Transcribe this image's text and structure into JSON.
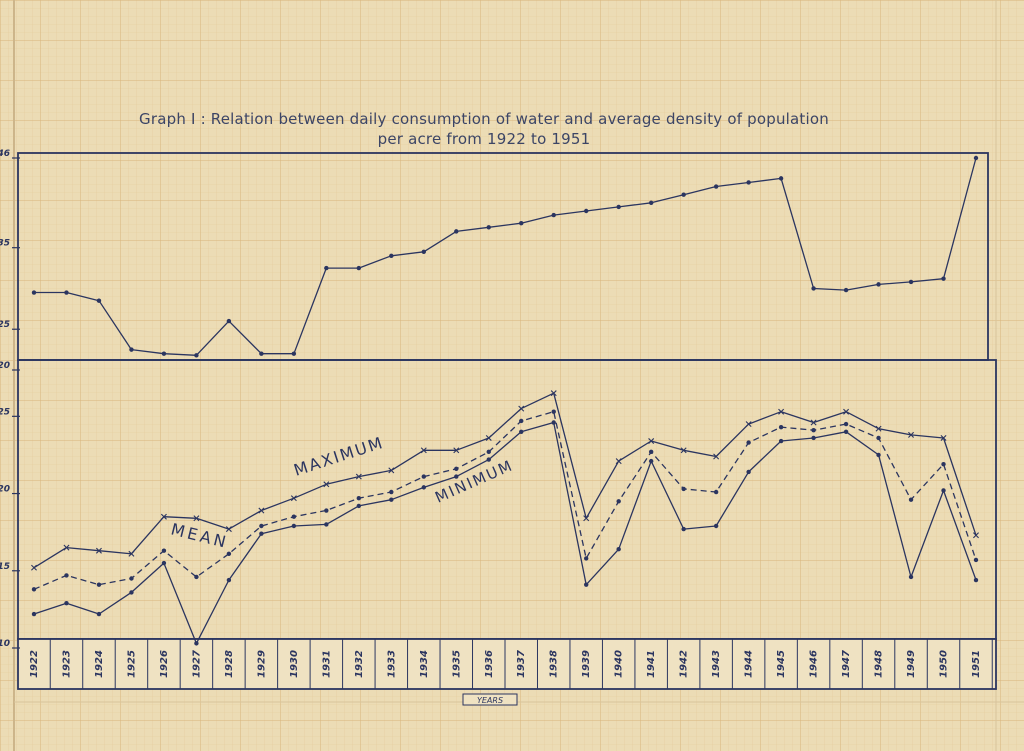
{
  "title_line1": "Graph I :  Relation between daily consumption of water and  average density of population",
  "title_line2": "per acre from 1922 to 1951",
  "colors": {
    "paper": "#ecdcb5",
    "grid_minor": "#e0c391",
    "grid_major": "#d4ac6c",
    "ink": "#2b3560"
  },
  "chart_data": [
    {
      "type": "line",
      "panel": "upper",
      "x": [
        "1922",
        "1923",
        "1924",
        "1925",
        "1926",
        "1927",
        "1928",
        "1929",
        "1930",
        "1931",
        "1932",
        "1933",
        "1934",
        "1935",
        "1936",
        "1937",
        "1938",
        "1939",
        "1940",
        "1941",
        "1942",
        "1943",
        "1944",
        "1945",
        "1946",
        "1947",
        "1948",
        "1949",
        "1950",
        "1951"
      ],
      "ylim": [
        20,
        46
      ],
      "ytick_labels": [
        "20",
        "25",
        "35",
        "46"
      ],
      "ytick_values": [
        20,
        25,
        35,
        46
      ],
      "series": [
        {
          "values": [
            29.5,
            29.5,
            28.5,
            22.5,
            22,
            21.8,
            26,
            22,
            22,
            32.5,
            32.5,
            34,
            34.5,
            37,
            37.5,
            38,
            39,
            39.5,
            40,
            40.5,
            41.5,
            42.5,
            43,
            43.5,
            30,
            29.8,
            30.5,
            30.8,
            31.2,
            46
          ]
        }
      ]
    },
    {
      "type": "line",
      "panel": "lower",
      "x": [
        "1922",
        "1923",
        "1924",
        "1925",
        "1926",
        "1927",
        "1928",
        "1929",
        "1930",
        "1931",
        "1932",
        "1933",
        "1934",
        "1935",
        "1936",
        "1937",
        "1938",
        "1939",
        "1940",
        "1941",
        "1942",
        "1943",
        "1944",
        "1945",
        "1946",
        "1947",
        "1948",
        "1949",
        "1950",
        "1951"
      ],
      "xtick_labels": [
        "1922",
        "1923",
        "1924",
        "1925",
        "1926",
        "1927",
        "1928",
        "1929",
        "1930",
        "1931",
        "1932",
        "1933",
        "1934",
        "1935",
        "1936",
        "1937",
        "1938",
        "1939",
        "1940",
        "1941",
        "1942",
        "1943",
        "1944",
        "1945",
        "1946",
        "1947",
        "1948",
        "1949",
        "1950",
        "1951"
      ],
      "xlabel": "YEARS",
      "ylim": [
        10,
        28
      ],
      "ytick_labels": [
        "10",
        "15",
        "20",
        "25"
      ],
      "ytick_values": [
        10,
        15,
        20,
        25
      ],
      "annotations": [
        "MAXIMUM",
        "MEAN",
        "MINIMUM"
      ],
      "series": [
        {
          "name": "MAXIMUM",
          "style": "solid",
          "marker": "x",
          "values": [
            15.2,
            16.5,
            16.3,
            16.1,
            18.5,
            18.4,
            17.7,
            18.9,
            19.7,
            20.6,
            21.1,
            21.5,
            22.8,
            22.8,
            23.6,
            25.5,
            26.5,
            18.4,
            22.1,
            23.4,
            22.8,
            22.4,
            24.5,
            25.3,
            24.6,
            25.3,
            24.2,
            23.8,
            23.6,
            17.3
          ]
        },
        {
          "name": "MEAN",
          "style": "dashed",
          "marker": "dot",
          "values": [
            13.8,
            14.7,
            14.1,
            14.5,
            16.3,
            14.6,
            16.1,
            17.9,
            18.5,
            18.9,
            19.7,
            20.1,
            21.1,
            21.6,
            22.7,
            24.7,
            25.3,
            15.8,
            19.5,
            22.7,
            20.3,
            20.1,
            23.3,
            24.3,
            24.1,
            24.5,
            23.6,
            19.6,
            21.9,
            15.7
          ]
        },
        {
          "name": "MINIMUM",
          "style": "solid",
          "marker": "dot",
          "values": [
            12.2,
            12.9,
            12.2,
            13.6,
            15.5,
            10.3,
            14.4,
            17.4,
            17.9,
            18,
            19.2,
            19.6,
            20.4,
            21.1,
            22.2,
            24,
            24.6,
            14.1,
            16.4,
            22.1,
            17.7,
            17.9,
            21.4,
            23.4,
            23.6,
            24,
            22.5,
            14.6,
            20.2,
            14.4
          ]
        }
      ]
    }
  ]
}
